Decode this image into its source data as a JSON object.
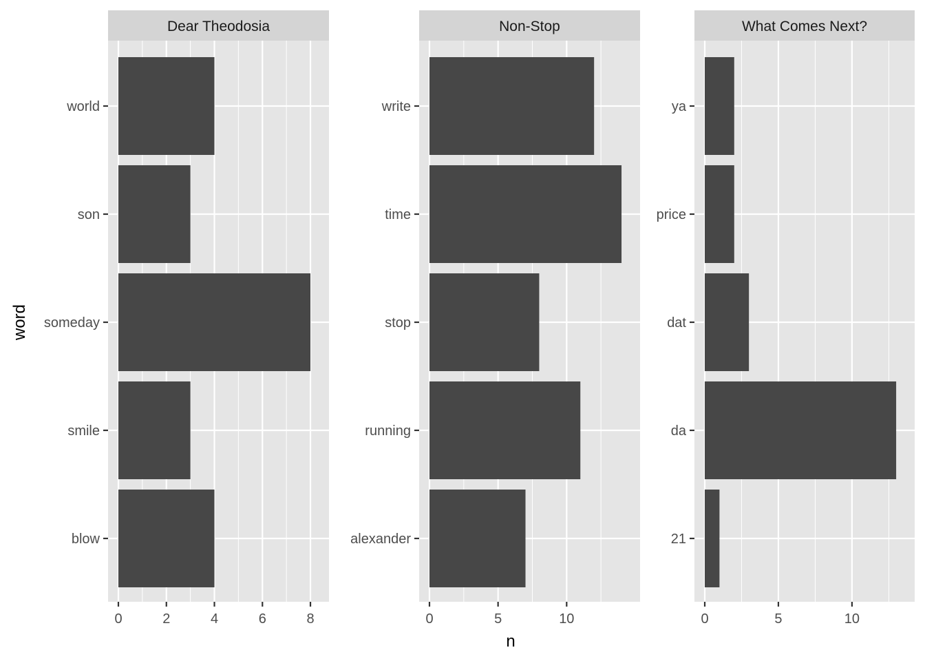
{
  "chart_data": {
    "type": "bar",
    "orientation": "horizontal",
    "xlabel": "n",
    "ylabel": "word",
    "grid": true,
    "legend": "none",
    "colors": {
      "bar": "#474747",
      "panel_background": "#e5e5e5",
      "strip_background": "#d4d4d4",
      "grid": "#ffffff"
    },
    "panels": [
      {
        "title": "Dear Theodosia",
        "categories": [
          "world",
          "son",
          "someday",
          "smile",
          "blow"
        ],
        "values": [
          4,
          3,
          8,
          3,
          4
        ],
        "xlim": [
          0,
          8.4
        ],
        "xticks": [
          0,
          2,
          4,
          6,
          8
        ],
        "xtick_labels": [
          "0",
          "2",
          "4",
          "6",
          "8"
        ]
      },
      {
        "title": "Non-Stop",
        "categories": [
          "write",
          "time",
          "stop",
          "running",
          "alexander"
        ],
        "values": [
          12,
          14,
          8,
          11,
          7
        ],
        "xlim": [
          0,
          14.7
        ],
        "xticks": [
          0,
          5,
          10
        ],
        "xtick_labels": [
          "0",
          "5",
          "10"
        ]
      },
      {
        "title": "What Comes Next?",
        "categories": [
          "ya",
          "price",
          "dat",
          "da",
          "21"
        ],
        "values": [
          2,
          2,
          3,
          13,
          1
        ],
        "xlim": [
          0,
          13.65
        ],
        "xticks": [
          0,
          5,
          10
        ],
        "xtick_labels": [
          "0",
          "5",
          "10"
        ]
      }
    ]
  }
}
